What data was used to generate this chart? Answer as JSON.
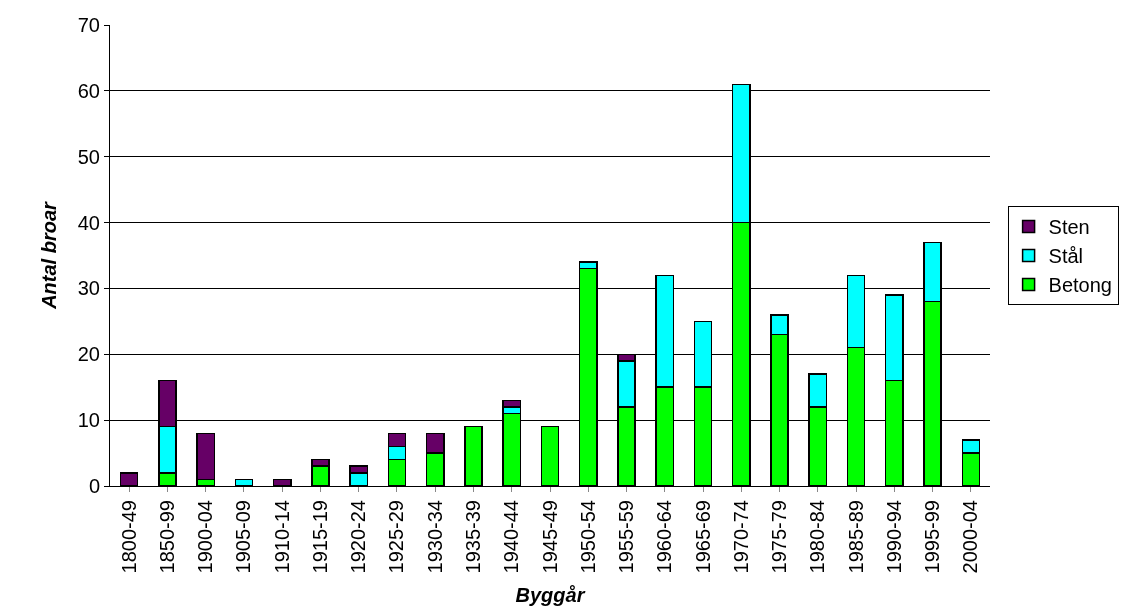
{
  "chart_data": {
    "type": "bar",
    "stacked": true,
    "xlabel": "Byggår",
    "ylabel": "Antal broar",
    "categories": [
      "1800-49",
      "1850-99",
      "1900-04",
      "1905-09",
      "1910-14",
      "1915-19",
      "1920-24",
      "1925-29",
      "1930-34",
      "1935-39",
      "1940-44",
      "1945-49",
      "1950-54",
      "1955-59",
      "1960-64",
      "1965-69",
      "1970-74",
      "1975-79",
      "1980-84",
      "1985-89",
      "1990-94",
      "1995-99",
      "2000-04"
    ],
    "series": [
      {
        "name": "Betong",
        "color": "#00ff00",
        "values": [
          null,
          2,
          1,
          null,
          null,
          3,
          null,
          4,
          5,
          9,
          11,
          9,
          33,
          12,
          15,
          15,
          40,
          23,
          12,
          21,
          16,
          28,
          5
        ]
      },
      {
        "name": "Stål",
        "color": "#00ffff",
        "values": [
          null,
          7,
          null,
          1,
          null,
          null,
          2,
          2,
          null,
          null,
          1,
          null,
          1,
          7,
          17,
          10,
          21,
          3,
          5,
          11,
          13,
          9,
          2
        ]
      },
      {
        "name": "Sten",
        "color": "#660066",
        "values": [
          2,
          7,
          7,
          null,
          1,
          1,
          1,
          2,
          3,
          null,
          1,
          null,
          null,
          1,
          null,
          null,
          null,
          null,
          null,
          null,
          null,
          null,
          null
        ]
      }
    ],
    "ylim": [
      0,
      70
    ],
    "yticks": [
      0,
      10,
      20,
      30,
      40,
      50,
      60,
      70
    ],
    "grid": "y",
    "legend": "right"
  }
}
